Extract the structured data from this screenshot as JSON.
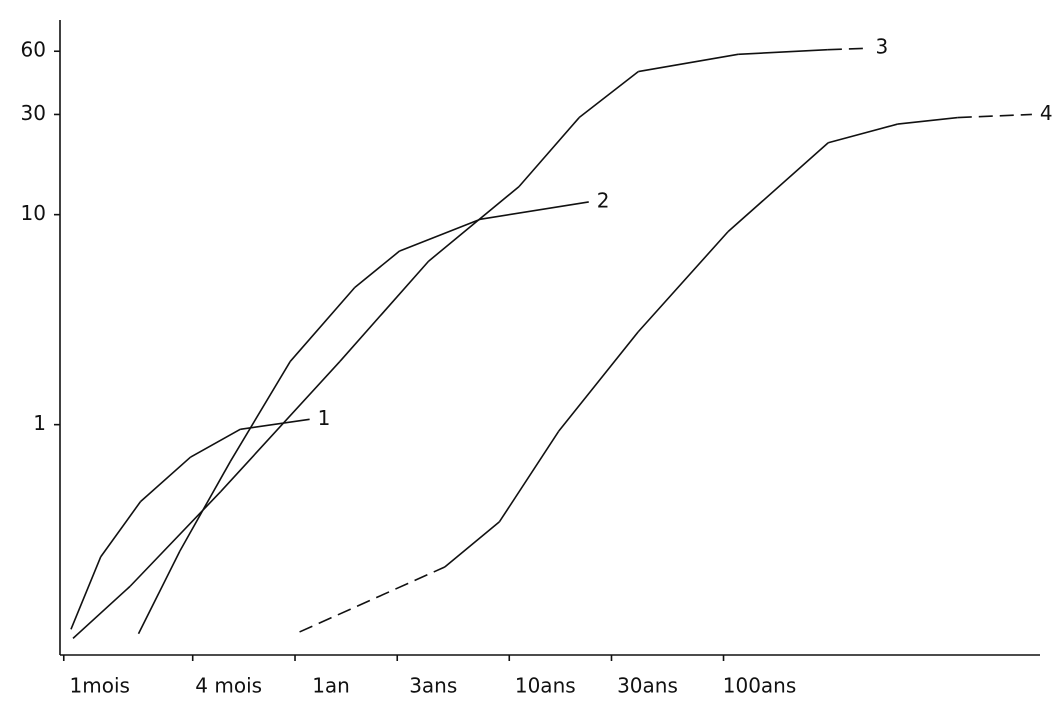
{
  "chart_data": {
    "type": "line",
    "x_log": true,
    "y_log": true,
    "color": "#111111",
    "xlim": [
      0.08,
      3000
    ],
    "ylim": [
      0.08,
      80
    ],
    "xticks": [
      {
        "value": 0.0833,
        "label": "1mois"
      },
      {
        "value": 0.333,
        "label": "4 mois"
      },
      {
        "value": 1,
        "label": "1an"
      },
      {
        "value": 3,
        "label": "3ans"
      },
      {
        "value": 10,
        "label": "10ans"
      },
      {
        "value": 30,
        "label": "30ans"
      },
      {
        "value": 100,
        "label": "100ans"
      }
    ],
    "yticks": [
      1,
      10,
      30,
      60
    ],
    "series": [
      {
        "name": "1",
        "x": [
          0.09,
          0.124,
          0.19,
          0.325,
          0.555,
          1.17
        ],
        "values": [
          0.106,
          0.235,
          0.43,
          0.7,
          0.95,
          1.06
        ],
        "dashed": [
          false,
          false,
          false,
          false,
          false
        ]
      },
      {
        "name": "2",
        "x": [
          0.186,
          0.29,
          0.5,
          0.95,
          1.9,
          3.07,
          7.3,
          23.5
        ],
        "values": [
          0.101,
          0.25,
          0.67,
          2.0,
          4.5,
          6.7,
          9.5,
          11.5
        ],
        "dashed": [
          false,
          false,
          false,
          false,
          false,
          false,
          false
        ]
      },
      {
        "name": "3",
        "x": [
          0.092,
          0.17,
          0.45,
          1.62,
          4.2,
          11.1,
          21.2,
          40,
          117,
          307,
          470
        ],
        "values": [
          0.096,
          0.17,
          0.48,
          2.0,
          6,
          13.6,
          29,
          48,
          58,
          61,
          62
        ],
        "dashed": [
          false,
          false,
          false,
          false,
          false,
          false,
          false,
          false,
          false,
          true
        ]
      },
      {
        "name": "4",
        "x": [
          1.05,
          5.0,
          9.0,
          17,
          40,
          105,
          308,
          650,
          1240,
          2750
        ],
        "values": [
          0.103,
          0.21,
          0.345,
          0.93,
          2.77,
          8.3,
          22,
          27,
          29,
          30
        ],
        "dashed": [
          true,
          false,
          false,
          false,
          false,
          false,
          false,
          false,
          true
        ]
      }
    ]
  }
}
